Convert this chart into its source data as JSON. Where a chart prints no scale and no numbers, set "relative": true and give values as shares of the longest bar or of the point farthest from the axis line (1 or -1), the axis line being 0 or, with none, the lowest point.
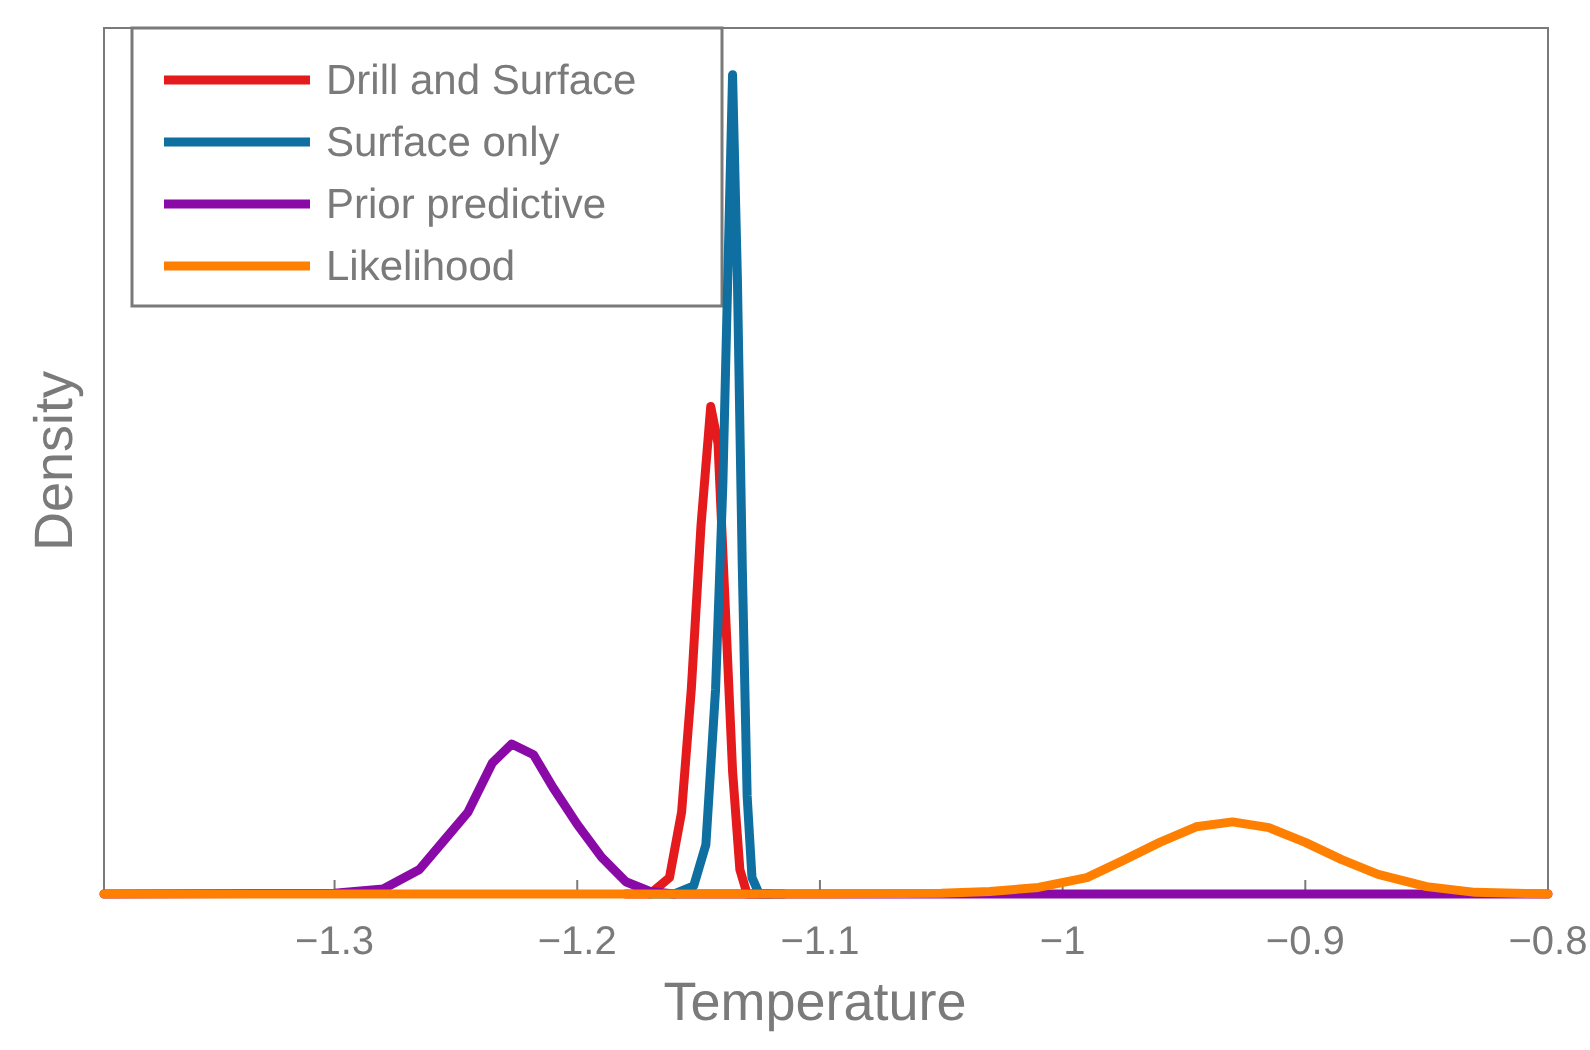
{
  "chart_data": {
    "type": "line",
    "xlabel": "Temperature",
    "ylabel": "Density",
    "relative": true,
    "tick_labels": "x",
    "legend": "top left",
    "grid": false,
    "line_style": "solid",
    "marker": "none",
    "xlim": [
      -1.395,
      -0.8
    ],
    "xticks": [
      {
        "value": -1.3,
        "label": "−1.3"
      },
      {
        "value": -1.2,
        "label": "−1.2"
      },
      {
        "value": -1.1,
        "label": "−1.1"
      },
      {
        "value": -1,
        "label": "−1"
      },
      {
        "value": -0.9,
        "label": "−0.9"
      },
      {
        "value": -0.8,
        "label": "−0.8"
      }
    ],
    "series": [
      {
        "name": "Drill and Surface",
        "color": "#e41a1c",
        "x": [
          -1.18,
          -1.17,
          -1.162,
          -1.157,
          -1.153,
          -1.149,
          -1.145,
          -1.142,
          -1.139,
          -1.136,
          -1.133,
          -1.13,
          -1.12
        ],
        "values": [
          0,
          0,
          0.02,
          0.1,
          0.25,
          0.45,
          0.595,
          0.55,
          0.35,
          0.15,
          0.03,
          0,
          0
        ]
      },
      {
        "name": "Surface only",
        "color": "#0f6fa0",
        "x": [
          -1.17,
          -1.16,
          -1.152,
          -1.147,
          -1.143,
          -1.14,
          -1.138,
          -1.136,
          -1.134,
          -1.132,
          -1.13,
          -1.128,
          -1.125,
          -1.115
        ],
        "values": [
          0,
          0,
          0.01,
          0.06,
          0.25,
          0.5,
          0.75,
          1,
          0.75,
          0.4,
          0.12,
          0.02,
          0,
          0
        ]
      },
      {
        "name": "Prior predictive",
        "color": "#8a0aa8",
        "x": [
          -1.395,
          -1.3,
          -1.28,
          -1.265,
          -1.255,
          -1.245,
          -1.235,
          -1.227,
          -1.218,
          -1.21,
          -1.2,
          -1.19,
          -1.18,
          -1.17,
          -1.16,
          -0.8
        ],
        "values": [
          0,
          0.001,
          0.006,
          0.03,
          0.065,
          0.1,
          0.16,
          0.183,
          0.17,
          0.13,
          0.085,
          0.045,
          0.015,
          0.003,
          0,
          0
        ]
      },
      {
        "name": "Likelihood",
        "color": "#ff7f00",
        "x": [
          -1.395,
          -1.1,
          -1.05,
          -1.03,
          -1.01,
          -0.99,
          -0.975,
          -0.96,
          -0.945,
          -0.93,
          -0.915,
          -0.9,
          -0.885,
          -0.87,
          -0.85,
          -0.83,
          -0.8
        ],
        "values": [
          0,
          0,
          0.001,
          0.003,
          0.008,
          0.02,
          0.041,
          0.063,
          0.082,
          0.088,
          0.081,
          0.063,
          0.042,
          0.024,
          0.009,
          0.002,
          0
        ]
      }
    ]
  }
}
